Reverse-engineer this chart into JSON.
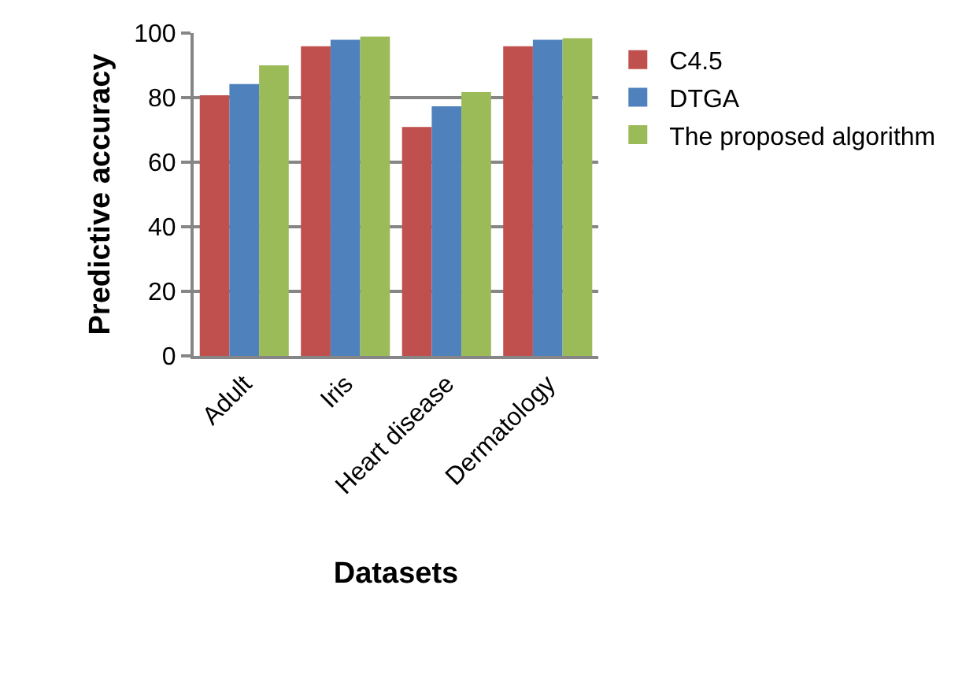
{
  "chart_data": {
    "type": "bar",
    "xlabel": "Datasets",
    "ylabel": "Predictive accuracy",
    "categories": [
      "Adult",
      "Iris",
      "Heart disease",
      "Dermatology"
    ],
    "series": [
      {
        "name": "C4.5",
        "color": "#c0504d",
        "values": [
          80.7,
          95.9,
          70.9,
          95.9
        ]
      },
      {
        "name": "DTGA",
        "color": "#4f81bd",
        "values": [
          84.2,
          97.9,
          77.3,
          97.9
        ]
      },
      {
        "name": "The proposed algorithm",
        "color": "#9bbb59",
        "values": [
          90.0,
          98.9,
          81.7,
          98.4
        ]
      }
    ],
    "ylim": [
      0,
      100
    ],
    "yticks": [
      0,
      20,
      40,
      60,
      80,
      100
    ],
    "grid": "y",
    "legend": "right"
  }
}
